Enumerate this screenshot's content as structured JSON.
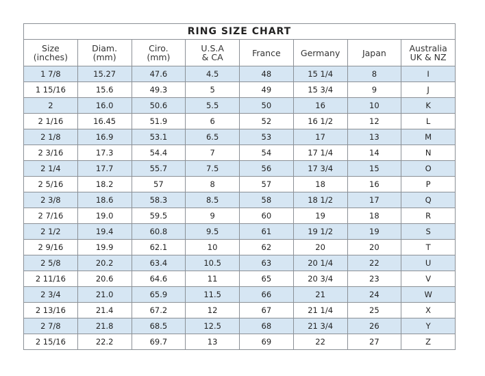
{
  "title": "RING SIZE  CHART",
  "headers": [
    [
      "Size",
      "(inches)"
    ],
    [
      "Diam.",
      "(mm)"
    ],
    [
      "Ciro.",
      "(mm)"
    ],
    [
      "U.S.A",
      "& CA"
    ],
    [
      "France",
      ""
    ],
    [
      "Germany",
      ""
    ],
    [
      "Japan",
      ""
    ],
    [
      "Australia",
      "UK & NZ"
    ]
  ],
  "rows": [
    [
      "1 7/8",
      "15.27",
      "47.6",
      "4.5",
      "48",
      "15 1/4",
      "8",
      "I"
    ],
    [
      "1 15/16",
      "15.6",
      "49.3",
      "5",
      "49",
      "15 3/4",
      "9",
      "J"
    ],
    [
      "2",
      "16.0",
      "50.6",
      "5.5",
      "50",
      "16",
      "10",
      "K"
    ],
    [
      "2 1/16",
      "16.45",
      "51.9",
      "6",
      "52",
      "16 1/2",
      "12",
      "L"
    ],
    [
      "2 1/8",
      "16.9",
      "53.1",
      "6.5",
      "53",
      "17",
      "13",
      "M"
    ],
    [
      "2 3/16",
      "17.3",
      "54.4",
      "7",
      "54",
      "17 1/4",
      "14",
      "N"
    ],
    [
      "2 1/4",
      "17.7",
      "55.7",
      "7.5",
      "56",
      "17 3/4",
      "15",
      "O"
    ],
    [
      "2 5/16",
      "18.2",
      "57",
      "8",
      "57",
      "18",
      "16",
      "P"
    ],
    [
      "2 3/8",
      "18.6",
      "58.3",
      "8.5",
      "58",
      "18 1/2",
      "17",
      "Q"
    ],
    [
      "2 7/16",
      "19.0",
      "59.5",
      "9",
      "60",
      "19",
      "18",
      "R"
    ],
    [
      "2 1/2",
      "19.4",
      "60.8",
      "9.5",
      "61",
      "19 1/2",
      "19",
      "S"
    ],
    [
      "2 9/16",
      "19.9",
      "62.1",
      "10",
      "62",
      "20",
      "20",
      "T"
    ],
    [
      "2 5/8",
      "20.2",
      "63.4",
      "10.5",
      "63",
      "20 1/4",
      "22",
      "U"
    ],
    [
      "2 11/16",
      "20.6",
      "64.6",
      "11",
      "65",
      "20 3/4",
      "23",
      "V"
    ],
    [
      "2 3/4",
      "21.0",
      "65.9",
      "11.5",
      "66",
      "21",
      "24",
      "W"
    ],
    [
      "2 13/16",
      "21.4",
      "67.2",
      "12",
      "67",
      "21 1/4",
      "25",
      "X"
    ],
    [
      "2 7/8",
      "21.8",
      "68.5",
      "12.5",
      "68",
      "21 3/4",
      "26",
      "Y"
    ],
    [
      "2 15/16",
      "22.2",
      "69.7",
      "13",
      "69",
      "22",
      "27",
      "Z"
    ]
  ],
  "colors": {
    "stripe": "#d6e6f3",
    "border": "#8a8f95"
  }
}
